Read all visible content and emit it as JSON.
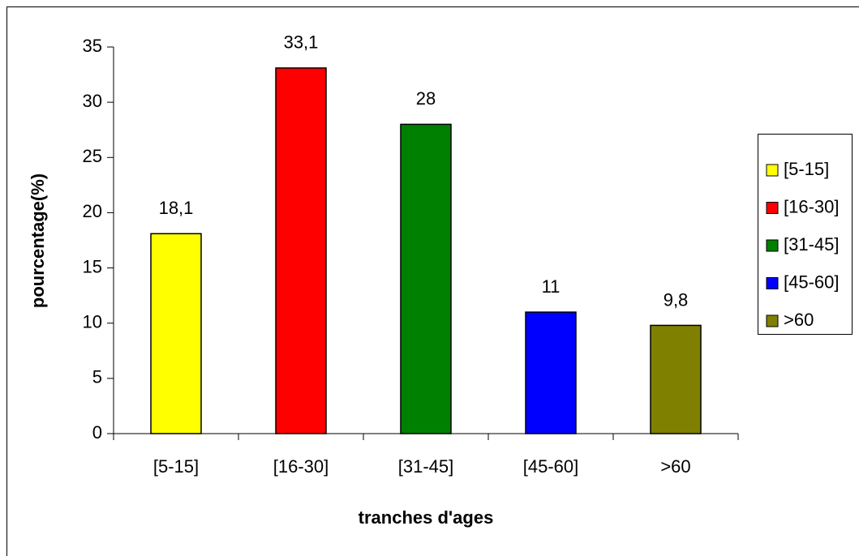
{
  "chart_data": {
    "type": "bar",
    "xlabel": "tranches d'ages",
    "ylabel": "pourcentage(%)",
    "categories": [
      "[5-15]",
      "[16-30]",
      "[31-45]",
      "[45-60]",
      ">60"
    ],
    "values": [
      18.1,
      33.1,
      28,
      11,
      9.8
    ],
    "value_labels": [
      "18,1",
      "33,1",
      "28",
      "11",
      "9,8"
    ],
    "colors": [
      "#ffff00",
      "#ff0000",
      "#008000",
      "#0000ff",
      "#808000"
    ],
    "ylim": [
      0,
      35
    ],
    "yticks": [
      0,
      5,
      10,
      15,
      20,
      25,
      30,
      35
    ],
    "grid": false,
    "legend": "right"
  }
}
